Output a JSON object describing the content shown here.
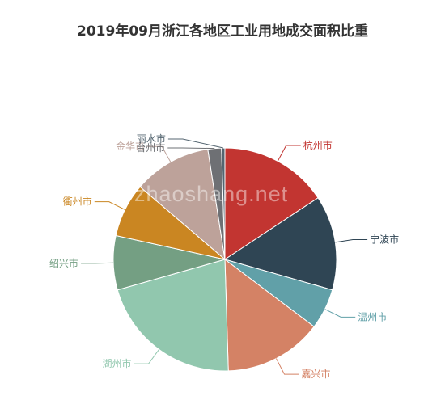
{
  "chart_data": {
    "type": "pie",
    "title": "2019年09月浙江各地区工业用地成交面积比重",
    "slices": [
      {
        "label": "杭州市",
        "value": 16.0,
        "color": "#c23531"
      },
      {
        "label": "宁波市",
        "value": 14.0,
        "color": "#2f4554"
      },
      {
        "label": "温州市",
        "value": 6.0,
        "color": "#61a0a8"
      },
      {
        "label": "嘉兴市",
        "value": 14.5,
        "color": "#d48265"
      },
      {
        "label": "湖州市",
        "value": 21.5,
        "color": "#91c7ae"
      },
      {
        "label": "绍兴市",
        "value": 8.0,
        "color": "#749f83"
      },
      {
        "label": "衢州市",
        "value": 8.0,
        "color": "#ca8622"
      },
      {
        "label": "金华市",
        "value": 11.5,
        "color": "#bda29a"
      },
      {
        "label": "台州市",
        "value": 2.0,
        "color": "#6e7074"
      },
      {
        "label": "丽水市",
        "value": 0.5,
        "color": "#546570"
      }
    ]
  },
  "watermark": "zhaoshang.net"
}
